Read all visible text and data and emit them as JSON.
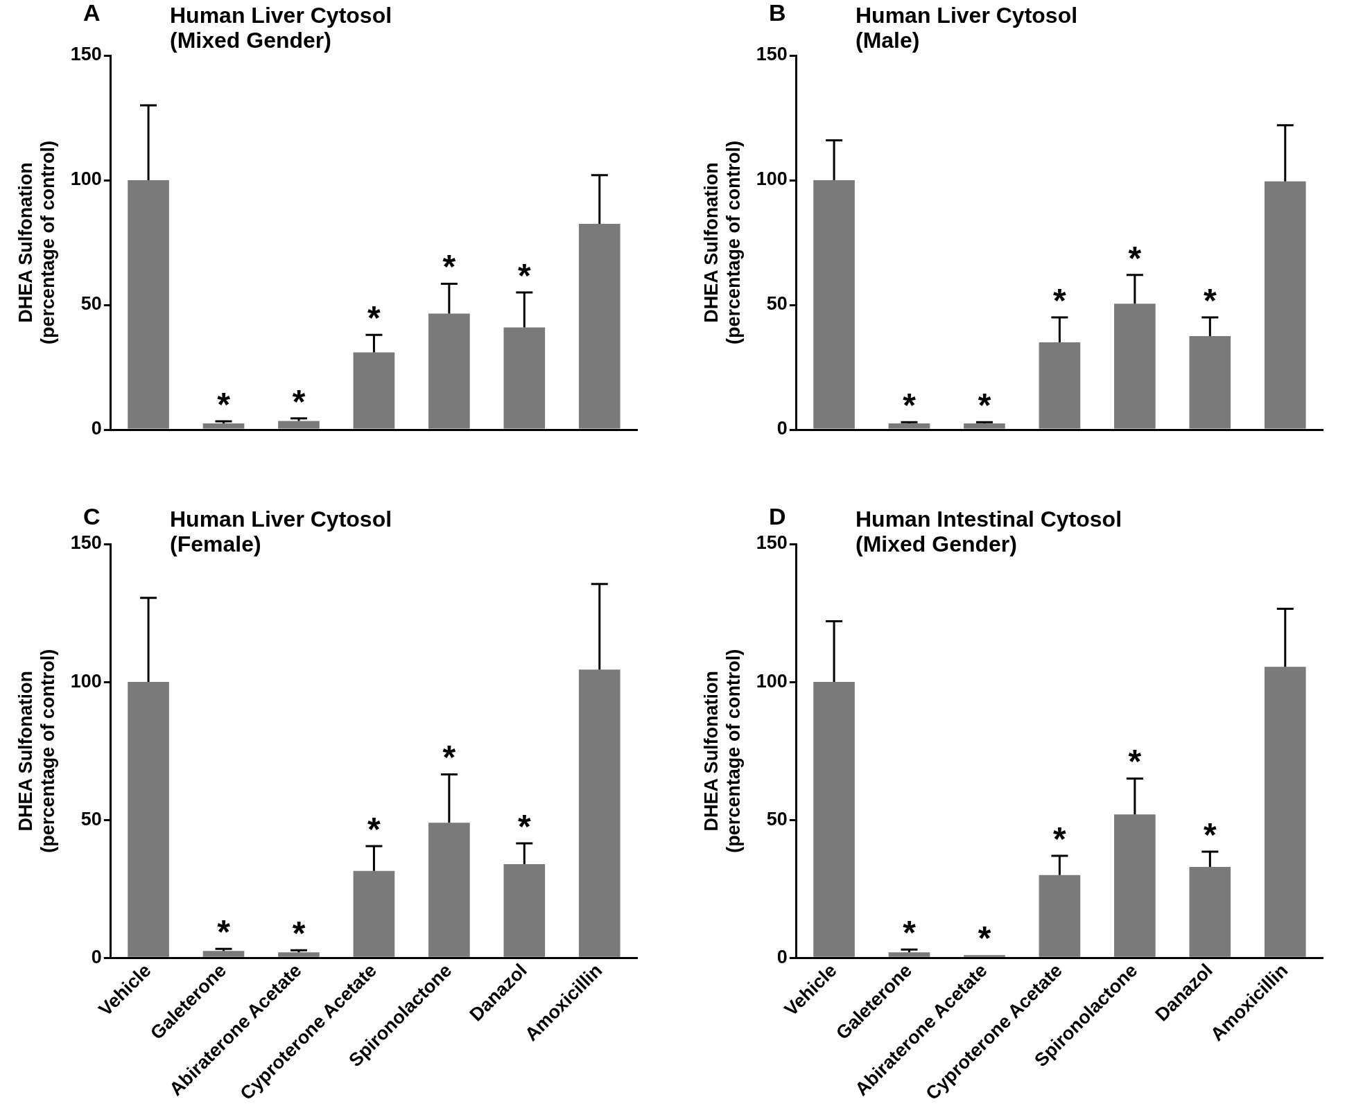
{
  "chart_data": [
    {
      "type": "bar",
      "title": "Human Liver Cytosol\n(Mixed Gender)",
      "ylabel": "DHEA Sulfonation\n(percentage of control)",
      "categories": [
        "Vehicle",
        "Galeterone",
        "Abiraterone Acetate",
        "Cyproterone Acetate",
        "Spironolactone",
        "Danazol",
        "Amoxicillin"
      ],
      "values": [
        100,
        2.5,
        3.5,
        31,
        46.5,
        41,
        82.5
      ],
      "errors": [
        30,
        0.8,
        1,
        7,
        12,
        14,
        19.5
      ],
      "color": "#7a7a7a",
      "ylim": [
        0,
        150
      ],
      "yticks": [
        0,
        50,
        100,
        150
      ],
      "grid": false,
      "tick_labels": "y",
      "annotations": [
        "A",
        {
          "text": "*",
          "x": "Galeterone",
          "y": 2.5
        },
        {
          "text": "*",
          "x": "Abiraterone Acetate",
          "y": 3.5
        },
        {
          "text": "*",
          "x": "Cyproterone Acetate",
          "y": 31
        },
        {
          "text": "*",
          "x": "Spironolactone",
          "y": 46.5
        },
        {
          "text": "*",
          "x": "Danazol",
          "y": 41
        }
      ]
    },
    {
      "type": "bar",
      "title": "Human Liver Cytosol\n(Male)",
      "ylabel": "DHEA Sulfonation\n(percentage of control)",
      "categories": [
        "Vehicle",
        "Galeterone",
        "Abiraterone Acetate",
        "Cyproterone Acetate",
        "Spironolactone",
        "Danazol",
        "Amoxicillin"
      ],
      "values": [
        100,
        2.5,
        2.5,
        35,
        50.5,
        37.5,
        99.5
      ],
      "errors": [
        16,
        0.5,
        0.5,
        10,
        11.5,
        7.5,
        22.5
      ],
      "color": "#7a7a7a",
      "ylim": [
        0,
        150
      ],
      "yticks": [
        0,
        50,
        100,
        150
      ],
      "grid": false,
      "tick_labels": "y",
      "annotations": [
        "B",
        {
          "text": "*",
          "x": "Galeterone",
          "y": 2.5
        },
        {
          "text": "*",
          "x": "Abiraterone Acetate",
          "y": 2.5
        },
        {
          "text": "*",
          "x": "Cyproterone Acetate",
          "y": 35
        },
        {
          "text": "*",
          "x": "Spironolactone",
          "y": 50.5
        },
        {
          "text": "*",
          "x": "Danazol",
          "y": 37.5
        }
      ]
    },
    {
      "type": "bar",
      "title": "Human Liver Cytosol\n(Female)",
      "ylabel": "DHEA Sulfonation\n(percentage of control)",
      "categories": [
        "Vehicle",
        "Galeterone",
        "Abiraterone Acetate",
        "Cyproterone Acetate",
        "Spironolactone",
        "Danazol",
        "Amoxicillin"
      ],
      "values": [
        100,
        2.5,
        2,
        31.5,
        49,
        34,
        104.5
      ],
      "errors": [
        30.5,
        0.8,
        0.8,
        9,
        17.5,
        7.5,
        31
      ],
      "color": "#7a7a7a",
      "ylim": [
        0,
        150
      ],
      "yticks": [
        0,
        50,
        100,
        150
      ],
      "grid": false,
      "annotations": [
        "C",
        {
          "text": "*",
          "x": "Galeterone",
          "y": 2.5
        },
        {
          "text": "*",
          "x": "Abiraterone Acetate",
          "y": 2
        },
        {
          "text": "*",
          "x": "Cyproterone Acetate",
          "y": 31.5
        },
        {
          "text": "*",
          "x": "Spironolactone",
          "y": 49
        },
        {
          "text": "*",
          "x": "Danazol",
          "y": 34
        }
      ]
    },
    {
      "type": "bar",
      "title": "Human Intestinal Cytosol\n(Mixed Gender)",
      "ylabel": "DHEA Sulfonation\n(percentage of control)",
      "categories": [
        "Vehicle",
        "Galeterone",
        "Abiraterone Acetate",
        "Cyproterone Acetate",
        "Spironolactone",
        "Danazol",
        "Amoxicillin"
      ],
      "values": [
        100,
        2,
        1,
        30,
        52,
        33,
        105.5
      ],
      "errors": [
        22,
        1,
        null,
        7,
        13,
        5.5,
        21
      ],
      "color": "#7a7a7a",
      "ylim": [
        0,
        150
      ],
      "yticks": [
        0,
        50,
        100,
        150
      ],
      "grid": false,
      "annotations": [
        "D",
        {
          "text": "*",
          "x": "Galeterone",
          "y": 2
        },
        {
          "text": "*",
          "x": "Abiraterone Acetate",
          "y": 1
        },
        {
          "text": "*",
          "x": "Cyproterone Acetate",
          "y": 30
        },
        {
          "text": "*",
          "x": "Spironolactone",
          "y": 52
        },
        {
          "text": "*",
          "x": "Danazol",
          "y": 33
        }
      ]
    }
  ]
}
